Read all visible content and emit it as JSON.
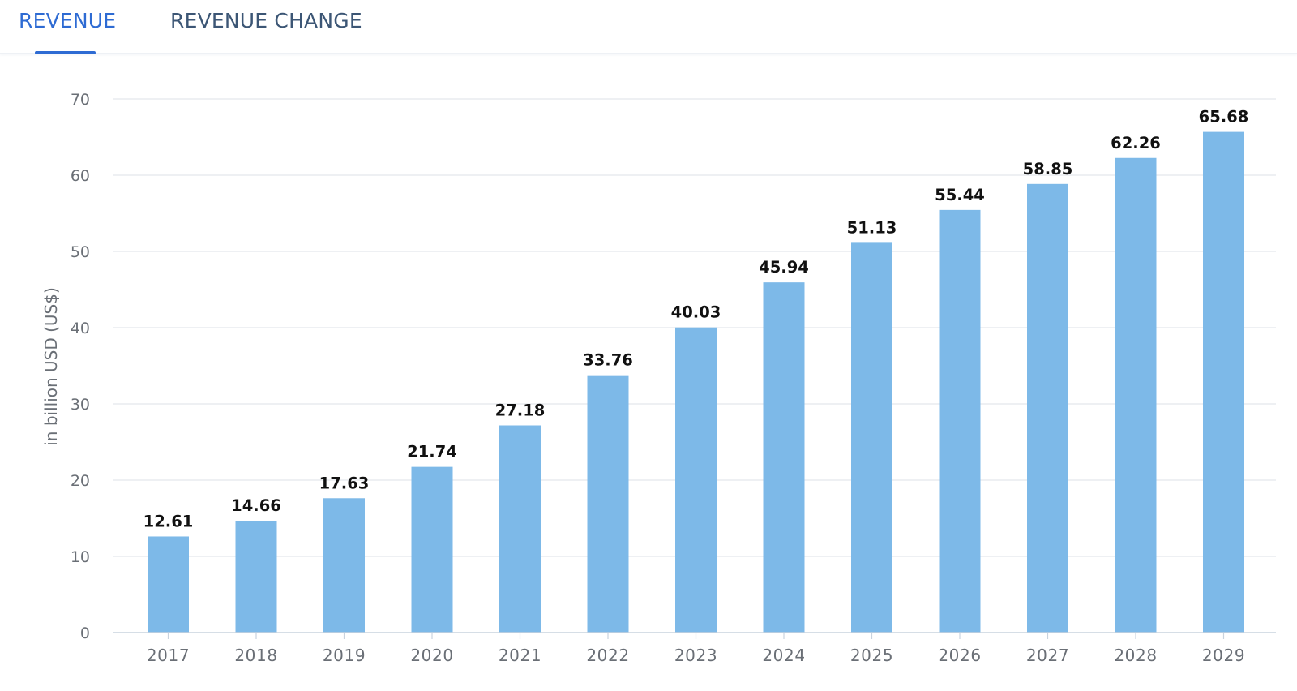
{
  "tabs": [
    {
      "label": "REVENUE",
      "active": true
    },
    {
      "label": "REVENUE CHANGE",
      "active": false
    }
  ],
  "colors": {
    "accent": "#2e6bd3",
    "bar": "#7db9e8",
    "inactive_tab": "#3c5675"
  },
  "chart_data": {
    "type": "bar",
    "categories": [
      "2017",
      "2018",
      "2019",
      "2020",
      "2021",
      "2022",
      "2023",
      "2024",
      "2025",
      "2026",
      "2027",
      "2028",
      "2029"
    ],
    "values": [
      12.61,
      14.66,
      17.63,
      21.74,
      27.18,
      33.76,
      40.03,
      45.94,
      51.13,
      55.44,
      58.85,
      62.26,
      65.68
    ],
    "value_labels": [
      "12.61",
      "14.66",
      "17.63",
      "21.74",
      "27.18",
      "33.76",
      "40.03",
      "45.94",
      "51.13",
      "55.44",
      "58.85",
      "62.26",
      "65.68"
    ],
    "ylabel": "in billion USD (US$)",
    "xlabel": "",
    "ylim": [
      0,
      70
    ],
    "yticks": [
      "0",
      "10",
      "20",
      "30",
      "40",
      "50",
      "60",
      "70"
    ],
    "grid": true,
    "legend": "none"
  }
}
